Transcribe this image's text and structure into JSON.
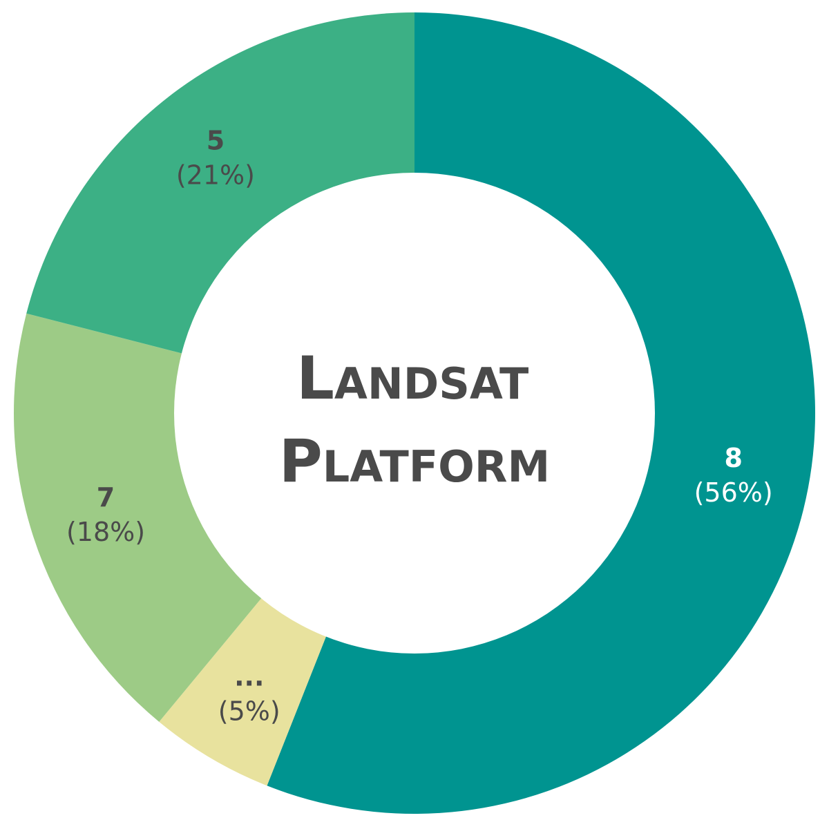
{
  "chart_data": {
    "type": "pie",
    "style": "donut",
    "center_title": {
      "line1": {
        "cap": "L",
        "rest": "ANDSAT"
      },
      "line2": {
        "cap": "P",
        "rest": "LATFORM"
      }
    },
    "slices": [
      {
        "label": "8",
        "percent_text": "(56%)",
        "value": 56,
        "color": "#009490",
        "text_color": "#ffffff"
      },
      {
        "label": "...",
        "percent_text": "(5%)",
        "value": 5,
        "color": "#e8e29e",
        "text_color": "#4a4a4a"
      },
      {
        "label": "7",
        "percent_text": "(18%)",
        "value": 18,
        "color": "#9dcb86",
        "text_color": "#4a4a4a"
      },
      {
        "label": "5",
        "percent_text": "(21%)",
        "value": 21,
        "color": "#3cb085",
        "text_color": "#4a4a4a"
      }
    ],
    "start_angle_deg": 0,
    "direction": "clockwise"
  }
}
